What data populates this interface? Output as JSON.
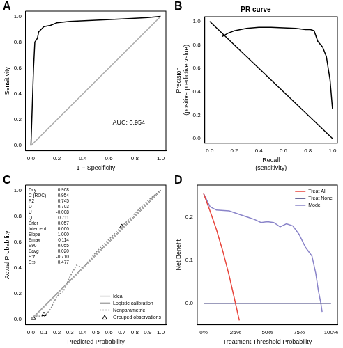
{
  "chart_data": [
    {
      "panel": "A",
      "type": "line",
      "xlabel": "1 − Specificity",
      "ylabel": "Sensitivity",
      "xlim": [
        -0.04,
        1.04
      ],
      "ylim": [
        -0.04,
        1.04
      ],
      "xticks": [
        {
          "value": 0,
          "label": "0.0"
        },
        0.2,
        0.4,
        0.6,
        0.8,
        {
          "value": 1,
          "label": "1.0"
        }
      ],
      "yticks": [
        {
          "value": 0,
          "label": "0.0"
        },
        0.2,
        0.4,
        0.6,
        0.8,
        {
          "value": 1,
          "label": "1.0"
        }
      ],
      "grid": false,
      "annotations": [
        "AUC: 0.954"
      ],
      "series": [
        {
          "color": "#aaaaaa",
          "line_style": "solid",
          "x": [
            0,
            1
          ],
          "values": [
            0,
            1
          ]
        },
        {
          "color": "#000000",
          "line_style": "solid",
          "x": [
            0,
            0.01,
            0.02,
            0.03,
            0.05,
            0.06,
            0.08,
            0.1,
            0.15,
            0.2,
            0.3,
            0.5,
            0.7,
            0.9,
            1
          ],
          "values": [
            0,
            0.3,
            0.6,
            0.8,
            0.83,
            0.88,
            0.9,
            0.92,
            0.93,
            0.95,
            0.96,
            0.97,
            0.98,
            0.99,
            1
          ]
        }
      ]
    },
    {
      "panel": "B",
      "type": "line",
      "title": "PR curve",
      "xlabel": [
        "Recall",
        "(sensitivity)"
      ],
      "ylabel": [
        "Precision",
        "(positive predictive value)"
      ],
      "xlim": [
        -0.04,
        1.04
      ],
      "ylim": [
        -0.04,
        1.04
      ],
      "xticks": [
        {
          "value": 0,
          "label": "0.0"
        },
        0.2,
        0.4,
        0.6,
        0.8,
        {
          "value": 1,
          "label": "1.0"
        }
      ],
      "yticks": [
        {
          "value": 0,
          "label": "0.0"
        },
        0.2,
        0.4,
        0.6,
        0.8,
        {
          "value": 1,
          "label": "1.0"
        }
      ],
      "grid": false,
      "series": [
        {
          "color": "#000000",
          "line_style": "solid",
          "x": [
            0,
            1
          ],
          "values": [
            1,
            0
          ]
        },
        {
          "color": "#000000",
          "line_style": "solid",
          "x": [
            0.1,
            0.15,
            0.2,
            0.3,
            0.4,
            0.5,
            0.6,
            0.7,
            0.78,
            0.82,
            0.85,
            0.88,
            0.92,
            0.95,
            0.98,
            1
          ],
          "values": [
            0.87,
            0.9,
            0.92,
            0.94,
            0.95,
            0.95,
            0.945,
            0.94,
            0.93,
            0.93,
            0.92,
            0.83,
            0.78,
            0.7,
            0.5,
            0.25
          ]
        }
      ]
    },
    {
      "panel": "C",
      "type": "line",
      "xlabel": "Predicted Probability",
      "ylabel": "Actual Probability",
      "xlim": [
        -0.04,
        1.04
      ],
      "ylim": [
        -0.04,
        1.04
      ],
      "xticks": [
        {
          "value": 0,
          "label": "0.0"
        },
        0.1,
        0.2,
        0.3,
        0.4,
        0.5,
        0.6,
        0.7,
        0.8,
        0.9,
        {
          "value": 1,
          "label": "1.0"
        }
      ],
      "yticks": [
        {
          "value": 0,
          "label": "0.0"
        },
        0.2,
        0.4,
        0.6,
        0.8,
        {
          "value": 1,
          "label": "1.0"
        }
      ],
      "grid": false,
      "legend": "bottom-right",
      "stats": [
        {
          "label": "Dxy",
          "value": "0.908"
        },
        {
          "label": "C (ROC)",
          "value": "0.954"
        },
        {
          "label": "R2",
          "value": "0.745"
        },
        {
          "label": "D",
          "value": "0.703"
        },
        {
          "label": "U",
          "value": "-0.008"
        },
        {
          "label": "Q",
          "value": "0.711"
        },
        {
          "label": "Brier",
          "value": "0.057"
        },
        {
          "label": "Intercept",
          "value": "0.000"
        },
        {
          "label": "Slope",
          "value": "1.000"
        },
        {
          "label": "Emax",
          "value": "0.114"
        },
        {
          "label": "E90",
          "value": "0.055"
        },
        {
          "label": "Eavg",
          "value": "0.020"
        },
        {
          "label": "S:z",
          "value": "-0.710"
        },
        {
          "label": "S:p",
          "value": "0.477"
        }
      ],
      "series": [
        {
          "name": "Ideal",
          "color": "#bbbbbb",
          "line_style": "solid",
          "x": [
            0,
            1
          ],
          "values": [
            0,
            1
          ]
        },
        {
          "name": "Logistic calibration",
          "color": "#000000",
          "line_style": "solid",
          "x": [
            0,
            1
          ],
          "values": [
            0,
            1
          ]
        },
        {
          "name": "Nonparametric",
          "color": "#888888",
          "line_style": "dotted",
          "x": [
            0,
            0.05,
            0.1,
            0.15,
            0.2,
            0.25,
            0.3,
            0.35,
            0.4,
            0.5,
            0.6,
            0.7,
            0.8,
            0.9,
            1
          ],
          "values": [
            0.01,
            0.03,
            0.02,
            0.08,
            0.18,
            0.22,
            0.33,
            0.42,
            0.4,
            0.52,
            0.62,
            0.72,
            0.82,
            0.92,
            1
          ]
        },
        {
          "name": "Grouped observations",
          "color": "#000000",
          "marker": "triangle",
          "x": [
            0.02,
            0.1,
            0.7
          ],
          "values": [
            0.01,
            0.04,
            0.72
          ]
        }
      ]
    },
    {
      "panel": "D",
      "type": "line",
      "xlabel": "Treatment Threshold Probability",
      "ylabel": "Net Benefit",
      "xlim": [
        -5,
        105
      ],
      "ylim": [
        -0.05,
        0.275
      ],
      "xticks": [
        {
          "value": 0,
          "label": "0%"
        },
        {
          "value": 25,
          "label": "25%"
        },
        {
          "value": 50,
          "label": "50%"
        },
        {
          "value": 75,
          "label": "75%"
        },
        {
          "value": 100,
          "label": "100%"
        }
      ],
      "yticks": [
        {
          "value": 0,
          "label": "0.0"
        },
        0.1,
        0.2
      ],
      "grid": false,
      "legend": "top-right",
      "series": [
        {
          "name": "Treat All",
          "color": "#e8453c",
          "line_style": "solid",
          "x": [
            0,
            5,
            10,
            15,
            20,
            25,
            28
          ],
          "values": [
            0.255,
            0.215,
            0.172,
            0.122,
            0.065,
            0.0,
            -0.04
          ]
        },
        {
          "name": "Treat None",
          "color": "#3b3b7a",
          "line_style": "solid",
          "x": [
            0,
            100
          ],
          "values": [
            0,
            0
          ]
        },
        {
          "name": "Model",
          "color": "#8a84c9",
          "line_style": "solid",
          "x": [
            0,
            5,
            10,
            20,
            30,
            35,
            40,
            45,
            50,
            55,
            60,
            65,
            70,
            75,
            80,
            85,
            88,
            90,
            92,
            93
          ],
          "values": [
            0.255,
            0.225,
            0.217,
            0.215,
            0.205,
            0.2,
            0.195,
            0.188,
            0.19,
            0.188,
            0.178,
            0.185,
            0.18,
            0.16,
            0.13,
            0.11,
            0.07,
            0.03,
            0.0,
            -0.02
          ]
        }
      ]
    }
  ]
}
